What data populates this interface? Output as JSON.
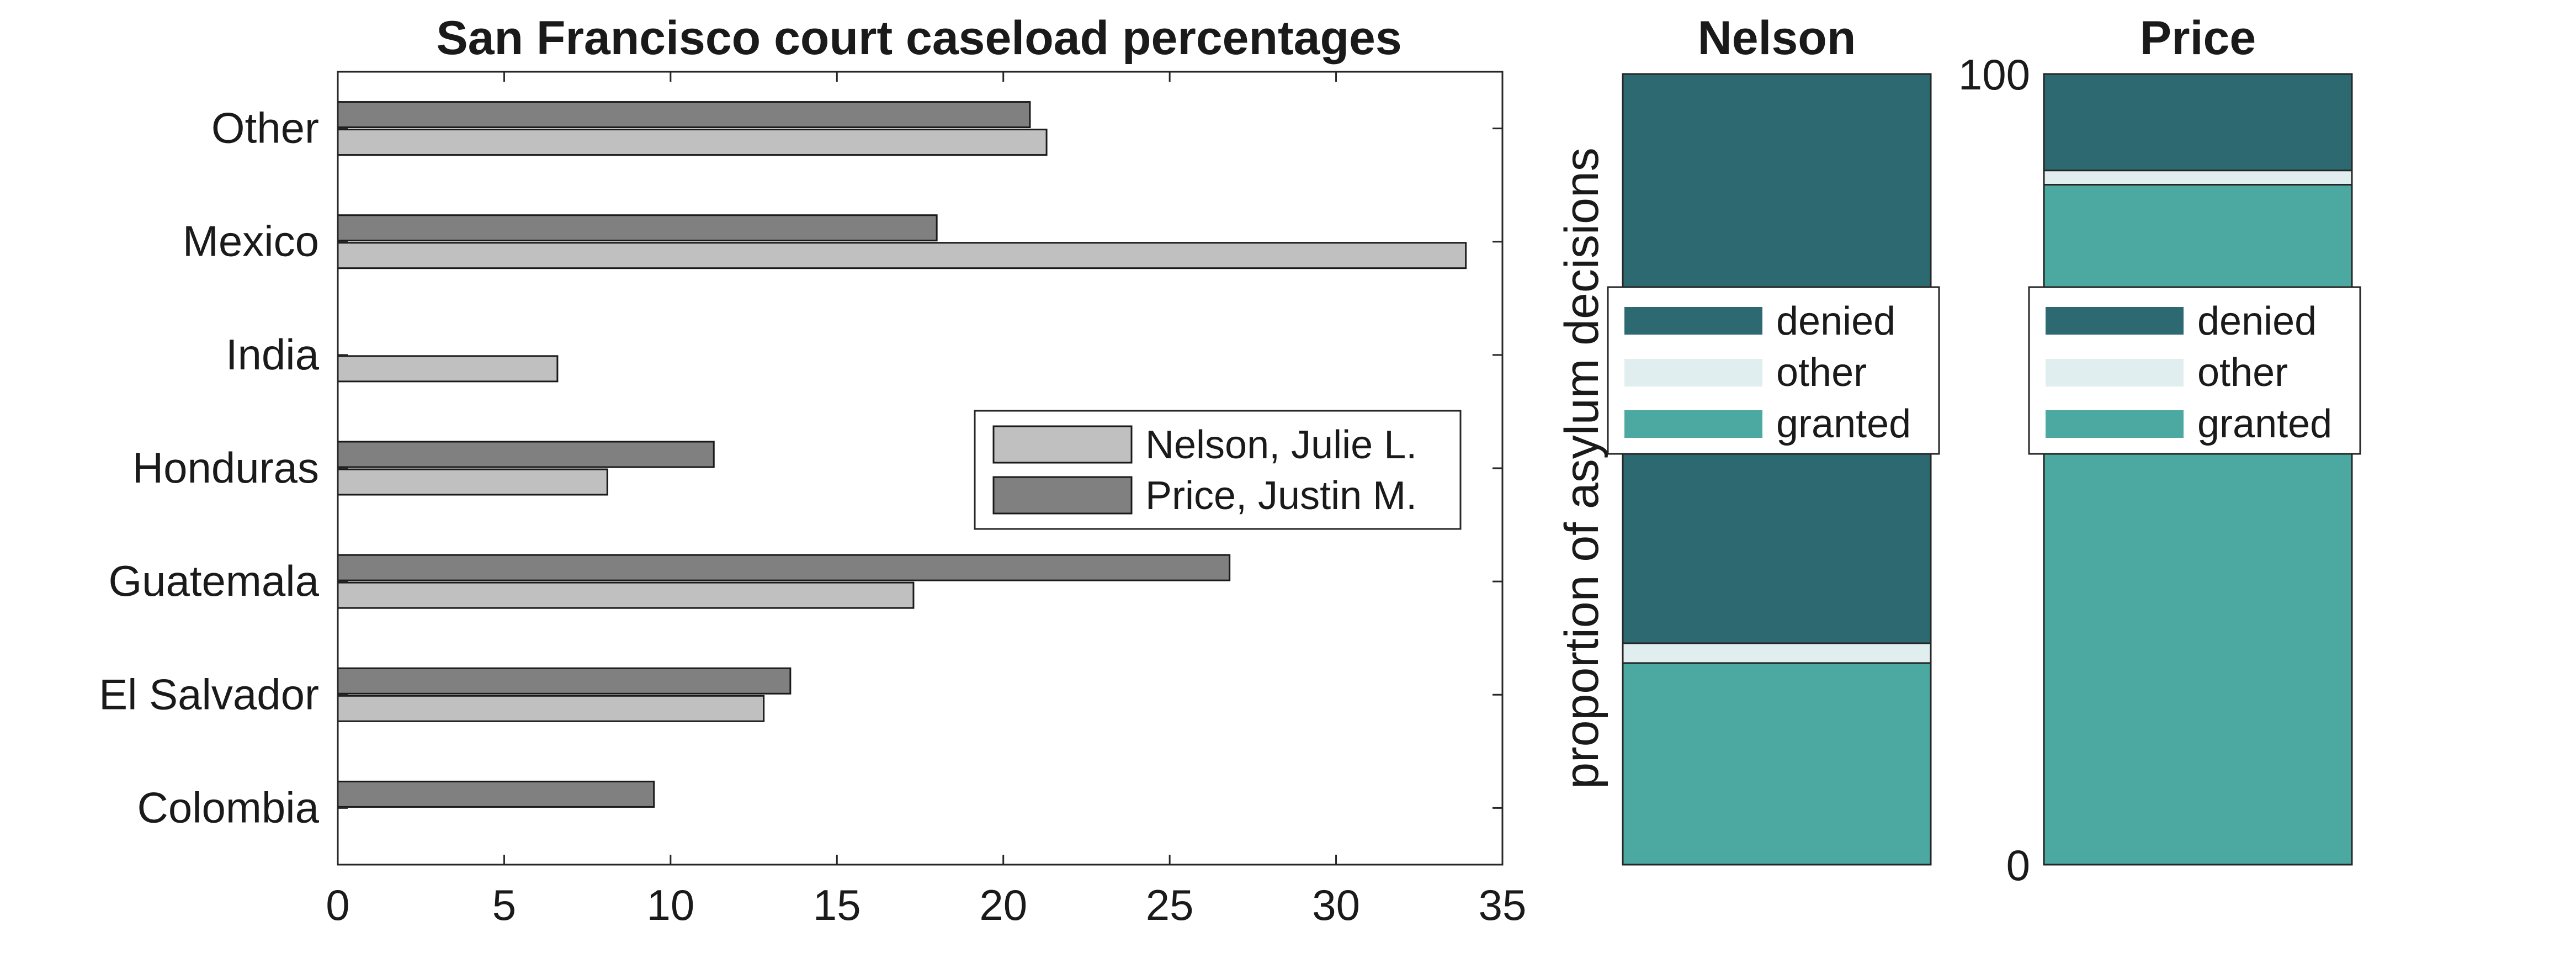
{
  "chart_data": [
    {
      "type": "bar",
      "orientation": "horizontal",
      "title": "San Francisco court caseload percentages",
      "xlabel": "",
      "ylabel": "",
      "categories": [
        "Colombia",
        "El Salvador",
        "Guatemala",
        "Honduras",
        "India",
        "Mexico",
        "Other"
      ],
      "series": [
        {
          "name": "Nelson, Julie L.",
          "color": "#c0c0c0",
          "values": [
            0,
            12.8,
            17.3,
            8.1,
            6.6,
            33.9,
            21.3
          ]
        },
        {
          "name": "Price, Justin M.",
          "color": "#808080",
          "values": [
            9.5,
            13.6,
            26.8,
            11.3,
            0,
            18.0,
            20.8
          ]
        }
      ],
      "xlim": [
        0,
        35
      ],
      "xticks": [
        "0",
        "5",
        "10",
        "15",
        "20",
        "25",
        "30",
        "35"
      ],
      "grid": false,
      "legend_position": "center-right"
    },
    {
      "type": "bar",
      "stacked": true,
      "title": "Nelson",
      "ylabel": "proportion of asylum decisions",
      "ylim": [
        0,
        100
      ],
      "stack_order": [
        "granted",
        "other",
        "denied"
      ],
      "series": [
        {
          "name": "granted",
          "color": "#4ba9a1",
          "value": 25.5
        },
        {
          "name": "other",
          "color": "#e1eef0",
          "value": 2.5
        },
        {
          "name": "denied",
          "color": "#2d6971",
          "value": 72.0
        }
      ],
      "legend_order": [
        "denied",
        "other",
        "granted"
      ],
      "legend_position": "center"
    },
    {
      "type": "bar",
      "stacked": true,
      "title": "Price",
      "ylabel": "",
      "ylim": [
        0,
        100
      ],
      "yticks": [
        "0",
        "100"
      ],
      "stack_order": [
        "granted",
        "other",
        "denied"
      ],
      "series": [
        {
          "name": "granted",
          "color": "#4ba9a1",
          "value": 86.0
        },
        {
          "name": "other",
          "color": "#e1eef0",
          "value": 1.8
        },
        {
          "name": "denied",
          "color": "#2d6971",
          "value": 12.2
        }
      ],
      "legend_order": [
        "denied",
        "other",
        "granted"
      ],
      "legend_position": "center"
    }
  ]
}
